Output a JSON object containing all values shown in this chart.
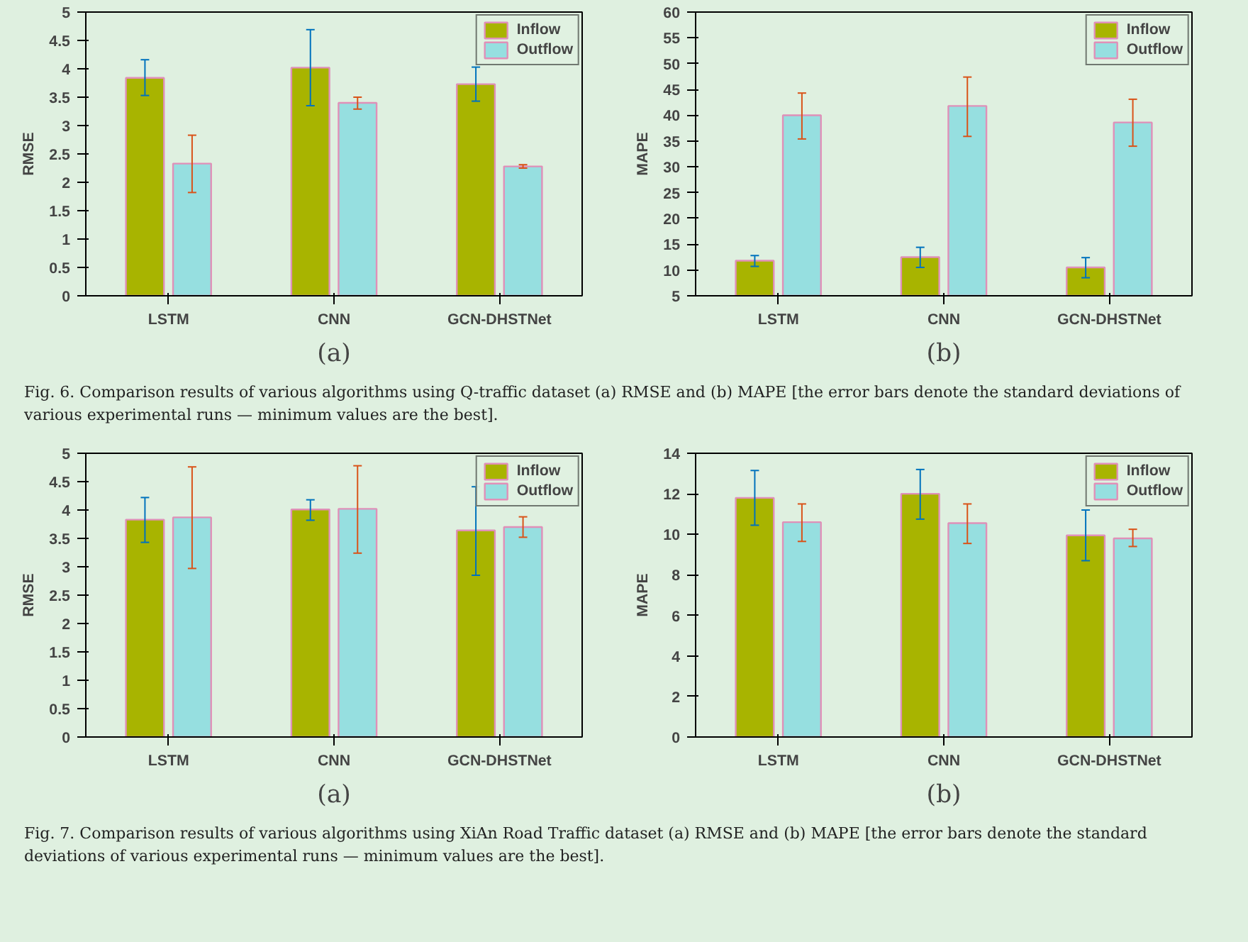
{
  "chart_data": [
    {
      "type": "bar",
      "xlabel": "(a)",
      "ylabel": "RMSE",
      "categories": [
        "LSTM",
        "CNN",
        "GCN-DHSTNet"
      ],
      "ylim": [
        0,
        5
      ],
      "yticks": [
        0,
        0.5,
        1,
        1.5,
        2,
        2.5,
        3,
        3.5,
        4,
        4.5,
        5
      ],
      "grid": false,
      "legend": "top right",
      "series": [
        {
          "name": "Inflow",
          "color": "#a8b400",
          "values": [
            3.84,
            4.02,
            3.73
          ],
          "errors": [
            [
              3.53,
              4.16
            ],
            [
              3.35,
              4.69
            ],
            [
              3.43,
              4.03
            ]
          ]
        },
        {
          "name": "Outflow",
          "color": "#96dfe0",
          "values": [
            2.33,
            3.4,
            2.28
          ],
          "errors": [
            [
              1.82,
              2.83
            ],
            [
              3.29,
              3.5
            ],
            [
              2.25,
              2.31
            ]
          ]
        }
      ]
    },
    {
      "type": "bar",
      "xlabel": "(b)",
      "ylabel": "MAPE",
      "categories": [
        "LSTM",
        "CNN",
        "GCN-DHSTNet"
      ],
      "ylim": [
        5,
        60
      ],
      "yticks": [
        5,
        10,
        15,
        20,
        25,
        30,
        35,
        40,
        45,
        50,
        55,
        60
      ],
      "grid": false,
      "legend": "top right",
      "series": [
        {
          "name": "Inflow",
          "color": "#a8b400",
          "values": [
            11.8,
            12.5,
            10.5
          ],
          "errors": [
            [
              10.7,
              12.8
            ],
            [
              10.5,
              14.4
            ],
            [
              8.5,
              12.4
            ]
          ]
        },
        {
          "name": "Outflow",
          "color": "#96dfe0",
          "values": [
            40.0,
            41.8,
            38.6
          ],
          "errors": [
            [
              35.4,
              44.3
            ],
            [
              35.9,
              47.4
            ],
            [
              34.0,
              43.1
            ]
          ]
        }
      ],
      "annotations": [
        "Fig. 6.  Comparison results of various algorithms using Q-traffic dataset (a) RMSE and (b) MAPE [the error bars denote the standard deviations of various experimental runs — minimum values are the best]."
      ]
    },
    {
      "type": "bar",
      "xlabel": "(a)",
      "ylabel": "RMSE",
      "categories": [
        "LSTM",
        "CNN",
        "GCN-DHSTNet"
      ],
      "ylim": [
        0,
        5
      ],
      "yticks": [
        0,
        0.5,
        1,
        1.5,
        2,
        2.5,
        3,
        3.5,
        4,
        4.5,
        5
      ],
      "grid": false,
      "legend": "top right",
      "series": [
        {
          "name": "Inflow",
          "color": "#a8b400",
          "values": [
            3.83,
            4.01,
            3.64
          ],
          "errors": [
            [
              3.43,
              4.22
            ],
            [
              3.82,
              4.18
            ],
            [
              2.85,
              4.41
            ]
          ]
        },
        {
          "name": "Outflow",
          "color": "#96dfe0",
          "values": [
            3.87,
            4.02,
            3.7
          ],
          "errors": [
            [
              2.97,
              4.76
            ],
            [
              3.24,
              4.78
            ],
            [
              3.52,
              3.88
            ]
          ]
        }
      ]
    },
    {
      "type": "bar",
      "xlabel": "(b)",
      "ylabel": "MAPE",
      "categories": [
        "LSTM",
        "CNN",
        "GCN-DHSTNet"
      ],
      "ylim": [
        0,
        14
      ],
      "yticks": [
        0,
        2,
        4,
        6,
        8,
        10,
        12,
        14
      ],
      "grid": false,
      "legend": "top right",
      "series": [
        {
          "name": "Inflow",
          "color": "#a8b400",
          "values": [
            11.8,
            12.0,
            9.95
          ],
          "errors": [
            [
              10.45,
              13.15
            ],
            [
              10.75,
              13.2
            ],
            [
              8.7,
              11.2
            ]
          ]
        },
        {
          "name": "Outflow",
          "color": "#96dfe0",
          "values": [
            10.6,
            10.55,
            9.8
          ],
          "errors": [
            [
              9.65,
              11.5
            ],
            [
              9.55,
              11.5
            ],
            [
              9.4,
              10.25
            ]
          ]
        }
      ],
      "annotations": [
        "Fig. 7.  Comparison results of various algorithms using XiAn Road Traffic dataset (a) RMSE and (b) MAPE [the error bars denote the standard deviations of various experimental runs — minimum values are the best]."
      ]
    }
  ]
}
